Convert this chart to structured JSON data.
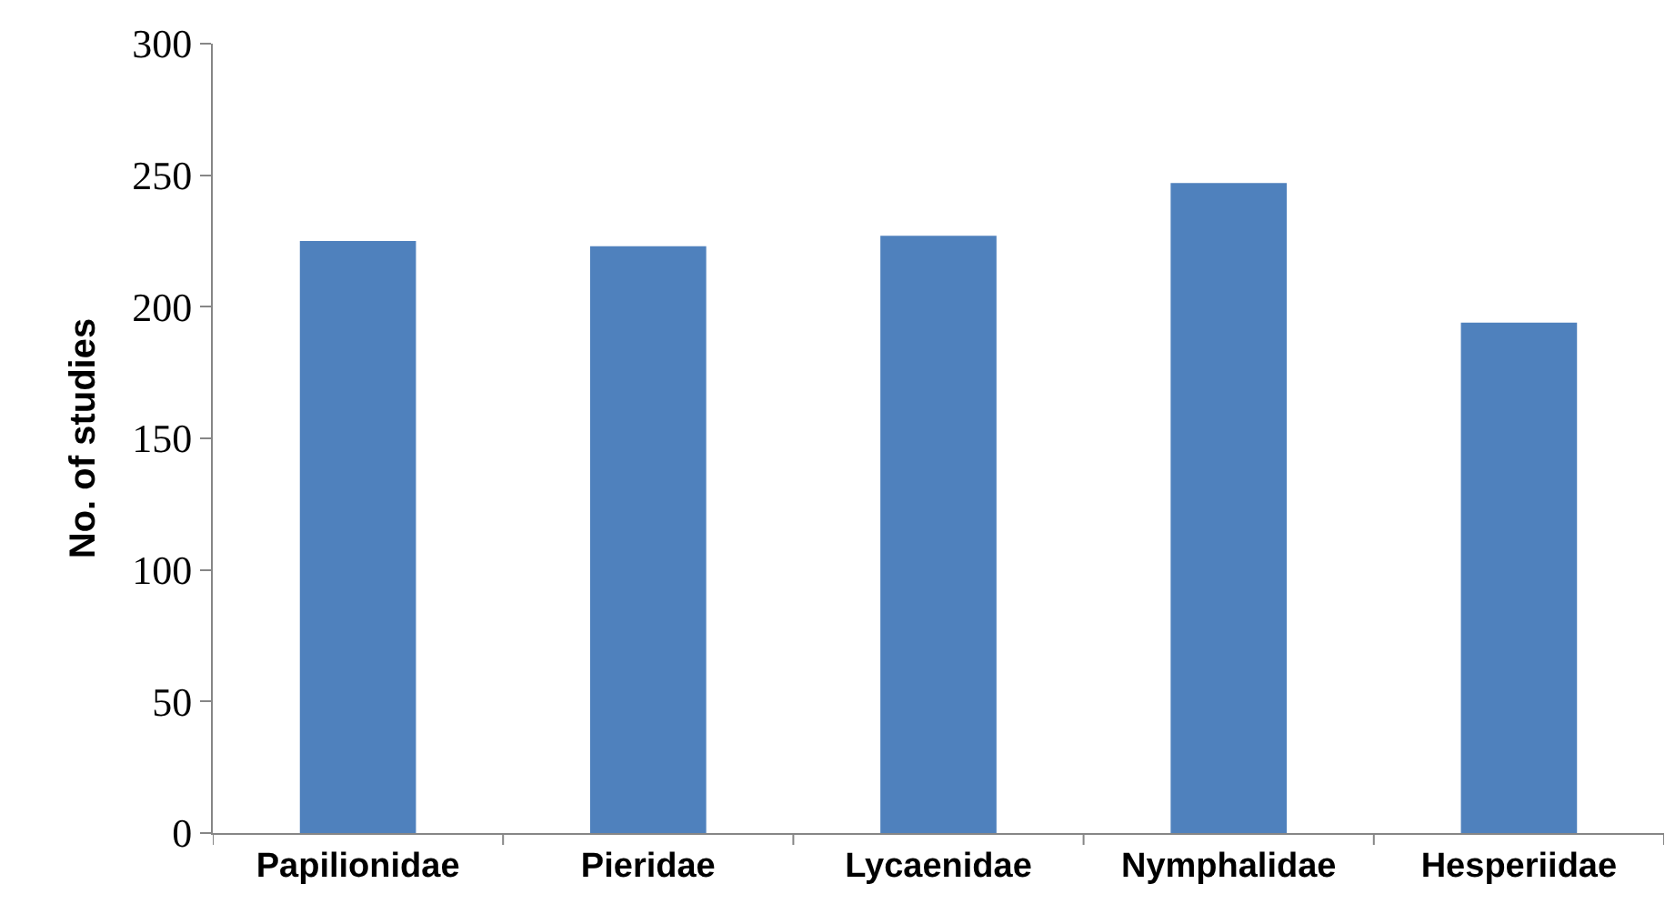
{
  "chart_data": {
    "type": "bar",
    "ylabel": "No. of studies",
    "categories": [
      "Papilionidae",
      "Pieridae",
      "Lycaenidae",
      "Nymphalidae",
      "Hesperiidae"
    ],
    "values": [
      225,
      223,
      227,
      247,
      194
    ],
    "color": "#4f81bd",
    "ylim": [
      0,
      300
    ],
    "yticks": [
      0,
      50,
      100,
      150,
      200,
      250,
      300
    ],
    "grid": false
  }
}
